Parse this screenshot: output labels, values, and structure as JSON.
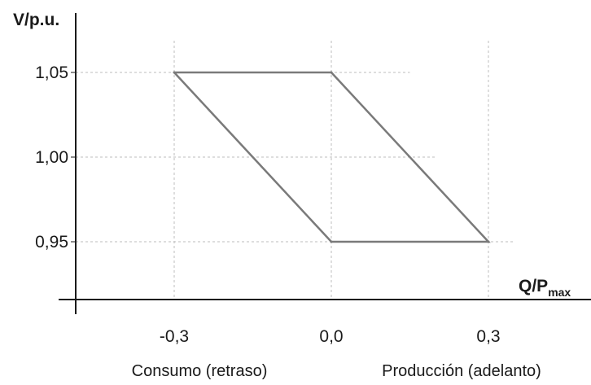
{
  "chart_data": {
    "type": "line",
    "title": "",
    "ylabel": "V/p.u.",
    "xlabel_main": "Q/P",
    "xlabel_sub": "max",
    "x_ticks": [
      {
        "value": -0.3,
        "label": "-0,3"
      },
      {
        "value": 0.0,
        "label": "0,0"
      },
      {
        "value": 0.3,
        "label": "0,3"
      }
    ],
    "y_ticks": [
      {
        "value": 1.05,
        "label": "1,05"
      },
      {
        "value": 1.0,
        "label": "1,00"
      },
      {
        "value": 0.95,
        "label": "0,95"
      }
    ],
    "region_labels": {
      "left": "Consumo (retraso)",
      "right": "Producción (adelanto)"
    },
    "series": [
      {
        "points": [
          {
            "x": -0.3,
            "y": 1.05
          },
          {
            "x": 0.0,
            "y": 1.05
          },
          {
            "x": 0.3,
            "y": 0.95
          },
          {
            "x": 0.0,
            "y": 0.95
          },
          {
            "x": -0.3,
            "y": 1.05
          }
        ]
      }
    ],
    "grid": "dashed-guides",
    "colors": {
      "axis": "#1a1a1a",
      "grid": "#bdbdbd",
      "line": "#7a7a7a"
    }
  }
}
